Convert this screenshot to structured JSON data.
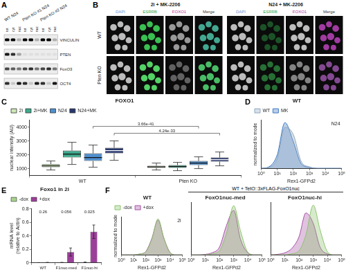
{
  "panel_labels": [
    "A",
    "B",
    "C",
    "D",
    "E",
    "F"
  ],
  "blot": {
    "groups": [
      "WT N24",
      "Pten KO #1 N24",
      "Pten KO #2 N24"
    ],
    "lanes": [
      "tot",
      "cyt",
      "nuc"
    ],
    "proteins": [
      "VINCULIN",
      "PTEN",
      "FoxO3",
      "OCT4"
    ]
  },
  "microscopy": {
    "conditions": [
      "2i + MK-2206",
      "N24 + MK-2206"
    ],
    "channels": [
      "DAPI",
      "ESRRB",
      "FOXO1",
      "Merge"
    ],
    "rows": [
      "WT",
      "Pten KO"
    ]
  },
  "panel_F_header": "WT + TetO::3xFLAG-FoxO1nuc",
  "chart_data": [
    {
      "type": "box",
      "title": "FOXO1",
      "y_label": "nuclear intensity (AU)",
      "categories": [
        "WT",
        "Pten KO"
      ],
      "series": [
        {
          "name": "2i",
          "color": "#cde8b5",
          "boxes": [
            {
              "low": 900,
              "q1": 1100,
              "median": 1200,
              "q3": 1320,
              "high": 1550
            },
            {
              "low": 900,
              "q1": 1050,
              "median": 1120,
              "q3": 1200,
              "high": 1400
            }
          ]
        },
        {
          "name": "2i+MK",
          "color": "#3daa8c",
          "boxes": [
            {
              "low": 1300,
              "q1": 1800,
              "median": 2050,
              "q3": 2300,
              "high": 2900
            },
            {
              "low": 850,
              "q1": 1050,
              "median": 1150,
              "q3": 1250,
              "high": 1450
            }
          ]
        },
        {
          "name": "N24",
          "color": "#4f8fcf",
          "boxes": [
            {
              "low": 1100,
              "q1": 1550,
              "median": 1800,
              "q3": 2100,
              "high": 2700
            },
            {
              "low": 1000,
              "q1": 1250,
              "median": 1400,
              "q3": 1550,
              "high": 1850
            }
          ]
        },
        {
          "name": "N24+MK",
          "color": "#27376e",
          "boxes": [
            {
              "low": 1600,
              "q1": 2100,
              "median": 2300,
              "q3": 2500,
              "high": 3000
            },
            {
              "low": 1200,
              "q1": 1500,
              "median": 1650,
              "q3": 1800,
              "high": 2200
            }
          ]
        }
      ],
      "ylim": [
        500,
        4500
      ],
      "yticks": [
        1000,
        2000,
        3000,
        4000
      ],
      "legend": "top-left",
      "annotations": [
        {
          "text": "3.66e-41",
          "from": [
            "WT",
            "N24"
          ],
          "to": [
            "Pten KO",
            "N24"
          ]
        },
        {
          "text": "4.24e-33",
          "from": [
            "WT",
            "N24+MK"
          ],
          "to": [
            "Pten KO",
            "N24+MK"
          ]
        }
      ]
    },
    {
      "type": "line",
      "title": "WT",
      "annotation": "N24",
      "x_label": "Rex1-GFPd2",
      "y_label": "normalized to mode",
      "x": [
        1,
        3,
        10,
        30,
        100,
        300,
        1000,
        3000,
        10000,
        30000,
        100000
      ],
      "series": [
        {
          "name": "WT",
          "color": "#8fa7c0",
          "values": [
            0,
            2,
            20,
            85,
            70,
            15,
            3,
            0,
            0,
            0,
            0
          ]
        },
        {
          "name": "MK",
          "color": "#3b78c2",
          "values": [
            0,
            3,
            28,
            95,
            55,
            10,
            2,
            0,
            0,
            0,
            0
          ]
        }
      ],
      "log": "x",
      "xlim": [
        1,
        100000
      ],
      "xticks": [
        {
          "value": 1,
          "label": "10⁰"
        },
        {
          "value": 10,
          "label": "10¹"
        },
        {
          "value": 100,
          "label": "10²"
        },
        {
          "value": 1000,
          "label": "10³"
        },
        {
          "value": 10000,
          "label": "10⁴"
        },
        {
          "value": 100000,
          "label": "10⁵"
        }
      ],
      "ylim": [
        0,
        100
      ],
      "tick_labels": "x",
      "legend": "top-left"
    },
    {
      "type": "bar",
      "title": "Foxo1 in 2i",
      "y_label": [
        "mRNA level",
        "(relative to Actin)"
      ],
      "categories": [
        "WT",
        "F1nuc-med",
        "F1nuc-hi"
      ],
      "series": [
        {
          "name": "-dox",
          "color": "#a6d38b",
          "values": [
            0.002,
            0.005,
            0.008
          ],
          "errors": [
            0.002,
            0.003,
            0.004
          ]
        },
        {
          "name": "+dox",
          "color": "#9c3f9a",
          "values": [
            0.005,
            0.16,
            0.46
          ],
          "errors": [
            0.003,
            0.06,
            0.1
          ]
        }
      ],
      "p_values": [
        0.26,
        0.056,
        0.025
      ],
      "ylim": [
        0,
        0.8
      ],
      "yticks": [
        0,
        0.2,
        0.4,
        0.6,
        0.8
      ],
      "legend": "top-left"
    },
    {
      "type": "line",
      "title": "WT",
      "annotation": "2i",
      "x_label": "Rex1-GFPd2",
      "y_label": "normalized to mode",
      "x": [
        1,
        3,
        10,
        30,
        100,
        300,
        1000,
        3000,
        10000,
        30000,
        100000
      ],
      "series": [
        {
          "name": "-dox",
          "color": "#8cc46e",
          "values": [
            0,
            0,
            0,
            2,
            8,
            40,
            95,
            45,
            5,
            0,
            0
          ]
        },
        {
          "name": "+dox",
          "color": "#a652a4",
          "values": [
            0,
            0,
            0,
            2,
            9,
            42,
            92,
            44,
            6,
            0,
            0
          ]
        }
      ],
      "log": "x",
      "xlim": [
        1,
        100000
      ],
      "xticks": [
        {
          "value": 1,
          "label": "10⁰"
        },
        {
          "value": 10,
          "label": "10¹"
        },
        {
          "value": 100,
          "label": "10²"
        },
        {
          "value": 1000,
          "label": "10³"
        },
        {
          "value": 10000,
          "label": "10⁴"
        },
        {
          "value": 100000,
          "label": "10⁵"
        }
      ],
      "ylim": [
        0,
        100
      ],
      "tick_labels": "x",
      "legend": "top-left"
    },
    {
      "type": "line",
      "title": "FoxO1nuc-med",
      "x_label": "Rex1-GFPd2",
      "x": [
        1,
        3,
        10,
        30,
        100,
        300,
        1000,
        3000,
        10000,
        30000,
        100000
      ],
      "series": [
        {
          "name": "-dox",
          "color": "#8cc46e",
          "values": [
            0,
            0,
            0,
            2,
            8,
            40,
            94,
            46,
            5,
            0,
            0
          ]
        },
        {
          "name": "+dox",
          "color": "#a652a4",
          "values": [
            0,
            0,
            1,
            4,
            15,
            55,
            85,
            30,
            4,
            0,
            0
          ]
        }
      ],
      "log": "x",
      "xlim": [
        1,
        100000
      ],
      "xticks": [
        {
          "value": 1,
          "label": "10⁰"
        },
        {
          "value": 10,
          "label": "10¹"
        },
        {
          "value": 100,
          "label": "10²"
        },
        {
          "value": 1000,
          "label": "10³"
        },
        {
          "value": 10000,
          "label": "10⁴"
        },
        {
          "value": 100000,
          "label": "10⁵"
        }
      ],
      "ylim": [
        0,
        100
      ],
      "tick_labels": "x"
    },
    {
      "type": "line",
      "title": "FoxO1nuc-hi",
      "x_label": "Rex1-GFPd2",
      "x": [
        1,
        3,
        10,
        30,
        100,
        300,
        1000,
        3000,
        10000,
        30000,
        100000
      ],
      "series": [
        {
          "name": "-dox",
          "color": "#8cc46e",
          "values": [
            0,
            0,
            0,
            2,
            8,
            38,
            95,
            48,
            6,
            0,
            0
          ]
        },
        {
          "name": "+dox",
          "color": "#a652a4",
          "values": [
            0,
            1,
            4,
            12,
            35,
            80,
            60,
            15,
            2,
            0,
            0
          ]
        }
      ],
      "log": "x",
      "xlim": [
        1,
        100000
      ],
      "xticks": [
        {
          "value": 1,
          "label": "10⁰"
        },
        {
          "value": 10,
          "label": "10¹"
        },
        {
          "value": 100,
          "label": "10²"
        },
        {
          "value": 1000,
          "label": "10³"
        },
        {
          "value": 10000,
          "label": "10⁴"
        },
        {
          "value": 100000,
          "label": "10⁵"
        }
      ],
      "ylim": [
        0,
        100
      ],
      "tick_labels": "x"
    }
  ]
}
